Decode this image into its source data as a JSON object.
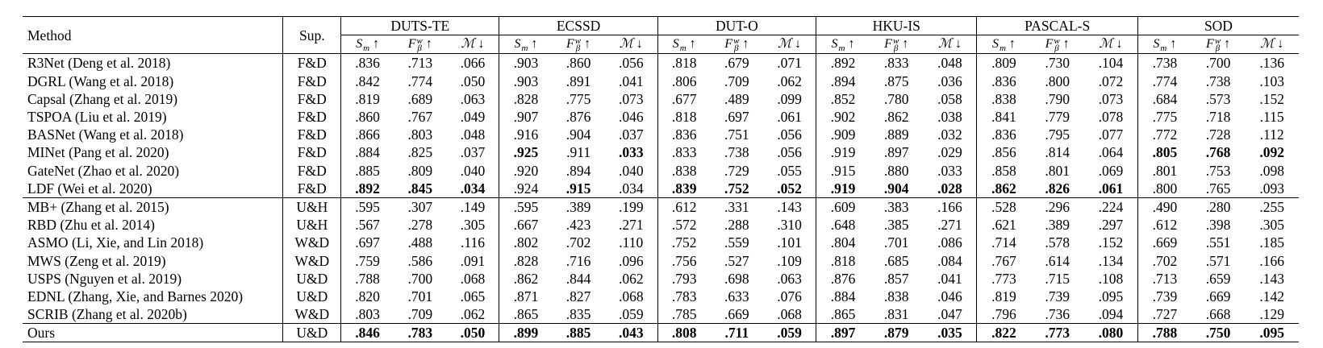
{
  "header": {
    "method": "Method",
    "sup": "Sup.",
    "datasets": [
      "DUTS-TE",
      "ECSSD",
      "DUT-O",
      "HKU-IS",
      "PASCAL-S",
      "SOD"
    ],
    "metrics": [
      "Sₘ ↑",
      "Fᵝᵝ ↑",
      "ℳ ↓"
    ]
  },
  "metric_labels": [
    {
      "sym": "S",
      "sub": "m",
      "sup": "",
      "arrow": "↑"
    },
    {
      "sym": "F",
      "sub": "β",
      "sup": "w",
      "arrow": "↑"
    },
    {
      "sym": "ℳ",
      "sub": "",
      "sup": "",
      "arrow": "↓"
    }
  ],
  "groups": [
    {
      "rows": [
        {
          "method": "R3Net (Deng et al. 2018)",
          "sup": "F&D",
          "values": [
            ".836",
            ".713",
            ".066",
            ".903",
            ".860",
            ".056",
            ".818",
            ".679",
            ".071",
            ".892",
            ".833",
            ".048",
            ".809",
            ".730",
            ".104",
            ".738",
            ".700",
            ".136"
          ],
          "bold": []
        },
        {
          "method": "DGRL (Wang et al. 2018)",
          "sup": "F&D",
          "values": [
            ".842",
            ".774",
            ".050",
            ".903",
            ".891",
            ".041",
            ".806",
            ".709",
            ".062",
            ".894",
            ".875",
            ".036",
            ".836",
            ".800",
            ".072",
            ".774",
            ".738",
            ".103"
          ],
          "bold": []
        },
        {
          "method": "Capsal (Zhang et al. 2019)",
          "sup": "F&D",
          "values": [
            ".819",
            ".689",
            ".063",
            ".828",
            ".775",
            ".073",
            ".677",
            ".489",
            ".099",
            ".852",
            ".780",
            ".058",
            ".838",
            ".790",
            ".073",
            ".684",
            ".573",
            ".152"
          ],
          "bold": []
        },
        {
          "method": "TSPOA (Liu et al. 2019)",
          "sup": "F&D",
          "values": [
            ".860",
            ".767",
            ".049",
            ".907",
            ".876",
            ".046",
            ".818",
            ".697",
            ".061",
            ".902",
            ".862",
            ".038",
            ".841",
            ".779",
            ".078",
            ".775",
            ".718",
            ".115"
          ],
          "bold": []
        },
        {
          "method": "BASNet (Wang et al. 2018)",
          "sup": "F&D",
          "values": [
            ".866",
            ".803",
            ".048",
            ".916",
            ".904",
            ".037",
            ".836",
            ".751",
            ".056",
            ".909",
            ".889",
            ".032",
            ".836",
            ".795",
            ".077",
            ".772",
            ".728",
            ".112"
          ],
          "bold": []
        },
        {
          "method": "MINet (Pang et al. 2020)",
          "sup": "F&D",
          "values": [
            ".884",
            ".825",
            ".037",
            ".925",
            ".911",
            ".033",
            ".833",
            ".738",
            ".056",
            ".919",
            ".897",
            ".029",
            ".856",
            ".814",
            ".064",
            ".805",
            ".768",
            ".092"
          ],
          "bold": [
            3,
            5,
            15,
            16,
            17
          ]
        },
        {
          "method": "GateNet (Zhao et al. 2020)",
          "sup": "F&D",
          "values": [
            ".885",
            ".809",
            ".040",
            ".920",
            ".894",
            ".040",
            ".838",
            ".729",
            ".055",
            ".915",
            ".880",
            ".033",
            ".858",
            ".801",
            ".069",
            ".801",
            ".753",
            ".098"
          ],
          "bold": []
        },
        {
          "method": "LDF (Wei et al. 2020)",
          "sup": "F&D",
          "values": [
            ".892",
            ".845",
            ".034",
            ".924",
            ".915",
            ".034",
            ".839",
            ".752",
            ".052",
            ".919",
            ".904",
            ".028",
            ".862",
            ".826",
            ".061",
            ".800",
            ".765",
            ".093"
          ],
          "bold": [
            0,
            1,
            2,
            4,
            6,
            7,
            8,
            9,
            10,
            11,
            12,
            13,
            14
          ]
        }
      ]
    },
    {
      "rows": [
        {
          "method": "MB+ (Zhang et al. 2015)",
          "sup": "U&H",
          "values": [
            ".595",
            ".307",
            ".149",
            ".595",
            ".389",
            ".199",
            ".612",
            ".331",
            ".143",
            ".609",
            ".383",
            ".166",
            ".528",
            ".296",
            ".224",
            ".490",
            ".280",
            ".255"
          ],
          "bold": []
        },
        {
          "method": "RBD (Zhu et al. 2014)",
          "sup": "U&H",
          "values": [
            ".567",
            ".278",
            ".305",
            ".667",
            ".423",
            ".271",
            ".572",
            ".288",
            ".310",
            ".648",
            ".385",
            ".271",
            ".621",
            ".389",
            ".297",
            ".612",
            ".398",
            ".305"
          ],
          "bold": []
        },
        {
          "method": "ASMO (Li, Xie, and Lin 2018)",
          "sup": "W&D",
          "values": [
            ".697",
            ".488",
            ".116",
            ".802",
            ".702",
            ".110",
            ".752",
            ".559",
            ".101",
            ".804",
            ".701",
            ".086",
            ".714",
            ".578",
            ".152",
            ".669",
            ".551",
            ".185"
          ],
          "bold": []
        },
        {
          "method": "MWS (Zeng et al. 2019)",
          "sup": "W&D",
          "values": [
            ".759",
            ".586",
            ".091",
            ".828",
            ".716",
            ".096",
            ".756",
            ".527",
            ".109",
            ".818",
            ".685",
            ".084",
            ".767",
            ".614",
            ".134",
            ".702",
            ".571",
            ".166"
          ],
          "bold": []
        },
        {
          "method": "USPS (Nguyen et al. 2019)",
          "sup": "U&D",
          "values": [
            ".788",
            ".700",
            ".068",
            ".862",
            ".844",
            ".062",
            ".793",
            ".698",
            ".063",
            ".876",
            ".857",
            ".041",
            ".773",
            ".715",
            ".108",
            ".713",
            ".659",
            ".143"
          ],
          "bold": []
        },
        {
          "method": "EDNL (Zhang, Xie, and Barnes 2020)",
          "sup": "U&D",
          "values": [
            ".820",
            ".701",
            ".065",
            ".871",
            ".827",
            ".068",
            ".783",
            ".633",
            ".076",
            ".884",
            ".838",
            ".046",
            ".819",
            ".739",
            ".095",
            ".739",
            ".669",
            ".142"
          ],
          "bold": []
        },
        {
          "method": "SCRIB (Zhang et al. 2020b)",
          "sup": "W&D",
          "values": [
            ".803",
            ".709",
            ".062",
            ".865",
            ".835",
            ".059",
            ".785",
            ".669",
            ".068",
            ".865",
            ".831",
            ".047",
            ".796",
            ".736",
            ".094",
            ".727",
            ".668",
            ".129"
          ],
          "bold": []
        }
      ]
    },
    {
      "rows": [
        {
          "method": "Ours",
          "sup": "U&D",
          "values": [
            ".846",
            ".783",
            ".050",
            ".899",
            ".885",
            ".043",
            ".808",
            ".711",
            ".059",
            ".897",
            ".879",
            ".035",
            ".822",
            ".773",
            ".080",
            ".788",
            ".750",
            ".095"
          ],
          "bold": [
            0,
            1,
            2,
            3,
            4,
            5,
            6,
            7,
            8,
            9,
            10,
            11,
            12,
            13,
            14,
            15,
            16,
            17
          ]
        }
      ]
    }
  ]
}
